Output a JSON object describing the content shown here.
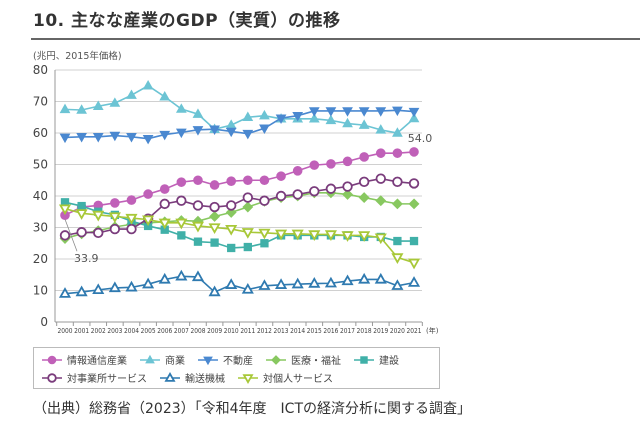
{
  "header": {
    "title": "10. 主なな産業のGDP（実質）の推移",
    "unit_label": "(兆円、2015年価格)"
  },
  "chart_data": {
    "type": "line",
    "title": "主な産業のGDP（実質）の推移",
    "xlabel": "(年)",
    "ylabel": "(兆円、2015年価格)",
    "ylim": [
      0,
      80
    ],
    "yticks": [
      0,
      10,
      20,
      30,
      40,
      50,
      60,
      70,
      80
    ],
    "grid": "horizontal",
    "legend_position": "bottom",
    "x": [
      "2000",
      "2001",
      "2002",
      "2003",
      "2004",
      "2005",
      "2006",
      "2007",
      "2008",
      "2009",
      "2010",
      "2011",
      "2012",
      "2013",
      "2014",
      "2015",
      "2016",
      "2017",
      "2018",
      "2019",
      "2020",
      "2021"
    ],
    "series": [
      {
        "name": "情報通信産業",
        "color": "#c060b8",
        "marker": "circle-filled",
        "values": [
          33.9,
          36.5,
          37.0,
          37.8,
          38.7,
          40.6,
          42.2,
          44.4,
          45.0,
          43.5,
          44.7,
          45.0,
          45.0,
          46.3,
          48.0,
          49.8,
          50.2,
          51.0,
          52.4,
          53.6,
          53.6,
          54.0
        ]
      },
      {
        "name": "商業",
        "color": "#6cc4d4",
        "marker": "triangle-up-filled",
        "values": [
          67.5,
          67.3,
          68.5,
          69.5,
          72.0,
          75.0,
          71.5,
          67.6,
          66.0,
          61.2,
          62.5,
          65.0,
          65.5,
          64.5,
          64.5,
          64.5,
          64.0,
          63.0,
          62.5,
          61.0,
          60.0,
          64.6
        ]
      },
      {
        "name": "不動産",
        "color": "#4a88d0",
        "marker": "triangle-down-filled",
        "values": [
          58.6,
          58.8,
          58.8,
          59.2,
          58.8,
          58.2,
          59.5,
          60.2,
          61.0,
          61.2,
          60.5,
          59.8,
          61.5,
          64.7,
          65.5,
          67.0,
          67.0,
          67.0,
          67.0,
          67.0,
          67.2,
          66.8
        ]
      },
      {
        "name": "医療・福祉",
        "color": "#88c860",
        "marker": "diamond-filled",
        "values": [
          26.5,
          28.0,
          29.0,
          30.2,
          31.0,
          31.5,
          31.8,
          32.2,
          32.0,
          33.5,
          34.8,
          36.5,
          38.3,
          39.5,
          40.0,
          41.0,
          41.0,
          40.5,
          39.5,
          38.5,
          37.5,
          37.5
        ]
      },
      {
        "name": "建設",
        "color": "#40b0a8",
        "marker": "square-filled",
        "values": [
          38.0,
          36.8,
          35.0,
          34.0,
          32.0,
          30.5,
          29.3,
          27.5,
          25.5,
          25.2,
          23.5,
          23.8,
          25.0,
          27.5,
          27.5,
          27.5,
          27.5,
          27.5,
          27.0,
          27.0,
          25.7,
          25.7
        ]
      },
      {
        "name": "対事業所サービス",
        "color": "#7a3c7c",
        "marker": "circle-open",
        "values": [
          27.5,
          28.5,
          28.3,
          29.5,
          29.5,
          32.8,
          37.5,
          38.5,
          37.0,
          36.5,
          37.0,
          39.5,
          38.5,
          40.0,
          40.5,
          41.5,
          42.3,
          43.0,
          44.5,
          45.5,
          44.5,
          44.0
        ]
      },
      {
        "name": "輸送機械",
        "color": "#2f7ab0",
        "marker": "triangle-up-open",
        "values": [
          9.0,
          9.5,
          10.2,
          10.8,
          11.0,
          12.0,
          13.5,
          14.5,
          14.3,
          9.5,
          11.8,
          10.3,
          11.5,
          11.8,
          12.0,
          12.2,
          12.3,
          13.0,
          13.5,
          13.5,
          11.5,
          12.5
        ]
      },
      {
        "name": "対個人サービス",
        "color": "#a8c838",
        "marker": "triangle-down-open",
        "values": [
          36.0,
          34.5,
          34.0,
          33.5,
          33.0,
          32.5,
          31.5,
          31.5,
          30.5,
          30.0,
          29.5,
          28.5,
          28.3,
          28.0,
          28.0,
          27.8,
          27.8,
          27.5,
          27.5,
          26.8,
          20.5,
          18.8
        ]
      }
    ],
    "annotations": [
      {
        "series": "情報通信産業",
        "x": "2000",
        "text": "33.9"
      },
      {
        "series": "情報通信産業",
        "x": "2021",
        "text": "54.0"
      }
    ]
  },
  "legend": {
    "row1": [
      "情報通信産業",
      "商業",
      "不動産",
      "医療・福祉",
      "建設"
    ],
    "row2": [
      "対事業所サービス",
      "輸送機械",
      "対個人サービス"
    ]
  },
  "footer": {
    "source": "（出典）総務省（2023）「令和4年度　ICTの経済分析に関する調査」"
  }
}
